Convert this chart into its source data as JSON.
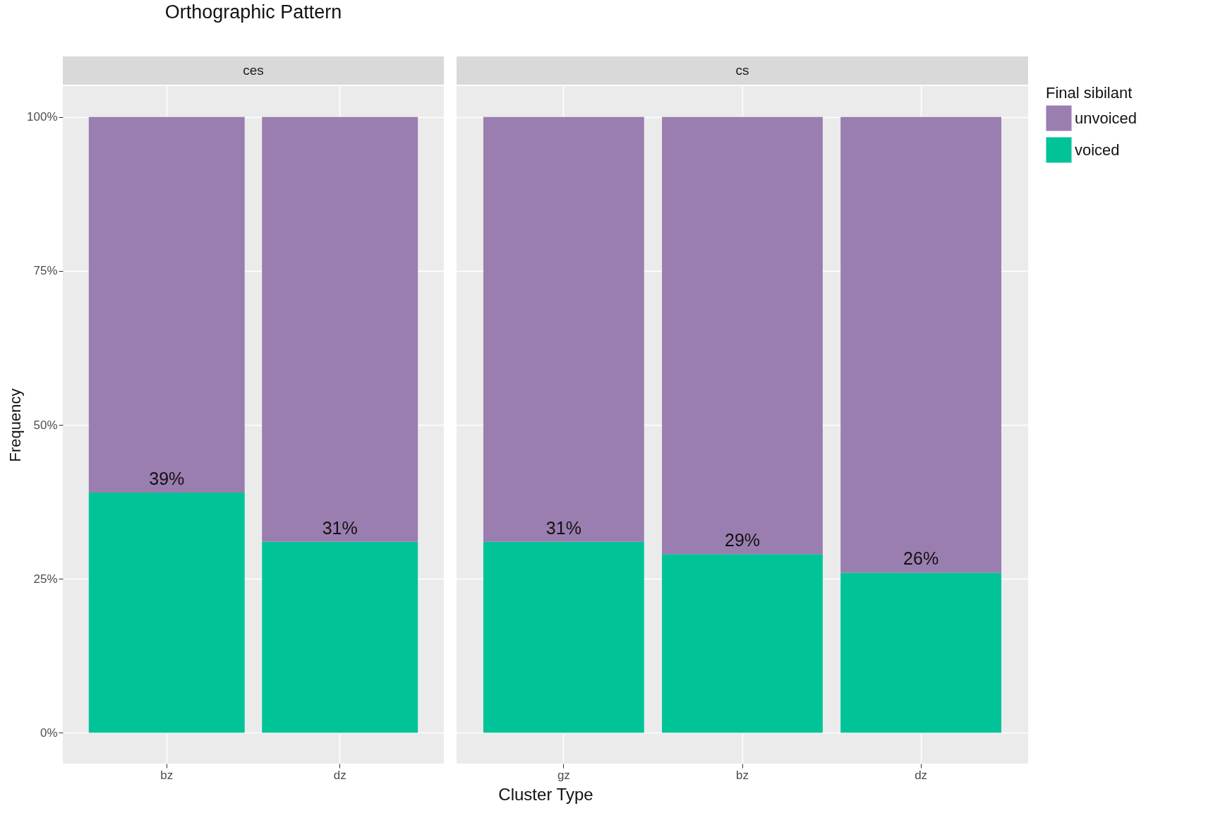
{
  "chart_data": [
    {
      "type": "bar",
      "title": "Orthographic Pattern",
      "subtitle": "ces",
      "xlabel": "Cluster Type",
      "ylabel": "Frequency",
      "legend": "right",
      "grid": true,
      "stacked": true,
      "categories": [
        "bz",
        "dz"
      ],
      "series": [
        {
          "name": "voiced",
          "color": "#00c397",
          "values": [
            39,
            31
          ],
          "value_labels": [
            "39%",
            "31%"
          ]
        },
        {
          "name": "unvoiced",
          "color": "#9a7eb0",
          "values": [
            61,
            69
          ]
        }
      ],
      "ylim": [
        -5,
        105
      ],
      "yticks": [
        {
          "value": 0,
          "label": "0%"
        },
        {
          "value": 25,
          "label": "25%"
        },
        {
          "value": 50,
          "label": "50%"
        },
        {
          "value": 75,
          "label": "75%"
        },
        {
          "value": 100,
          "label": "100%"
        }
      ]
    },
    {
      "type": "bar",
      "subtitle": "cs",
      "legend_title": "Final sibilant",
      "legend": "right",
      "grid": true,
      "stacked": true,
      "tick_labels": "x",
      "categories": [
        "gz",
        "bz",
        "dz"
      ],
      "series": [
        {
          "name": "voiced",
          "color": "#00c397",
          "values": [
            31,
            29,
            26
          ],
          "value_labels": [
            "31%",
            "29%",
            "26%"
          ]
        },
        {
          "name": "unvoiced",
          "color": "#9a7eb0",
          "values": [
            69,
            71,
            74
          ]
        }
      ],
      "ylim": [
        -5,
        105
      ],
      "yticks": [
        {
          "value": 0,
          "label": null
        },
        {
          "value": 25,
          "label": null
        },
        {
          "value": 50,
          "label": null
        },
        {
          "value": 75,
          "label": null
        },
        {
          "value": 100,
          "label": null
        }
      ]
    }
  ]
}
